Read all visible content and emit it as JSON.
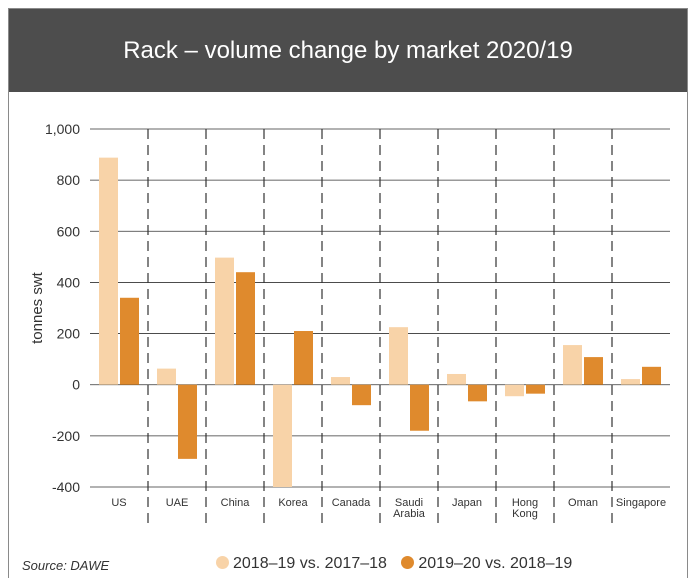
{
  "title": "Rack – volume change by market 2020/19",
  "source": "Source: DAWE",
  "colors": {
    "header_bg": "#4d4d4d",
    "series1": "#f8d3a8",
    "series2": "#df8a2d"
  },
  "chart_data": {
    "type": "bar",
    "title": "Rack – volume change by market 2020/19",
    "ylabel": "tonnes swt",
    "xlabel": "",
    "ylim": [
      -400,
      1000
    ],
    "yticks": [
      -400,
      -200,
      0,
      200,
      400,
      600,
      800,
      1000
    ],
    "ytick_labels": [
      "-400",
      "-200",
      "0",
      "200",
      "400",
      "600",
      "800",
      "1,000"
    ],
    "grid": "horizontal solid, vertical dashed separators",
    "legend_position": "bottom",
    "categories": [
      "US",
      "UAE",
      "China",
      "Korea",
      "Canada",
      "Saudi Arabia",
      "Japan",
      "Hong Kong",
      "Oman",
      "Singapore"
    ],
    "category_label_lines": [
      [
        "US"
      ],
      [
        "UAE"
      ],
      [
        "China"
      ],
      [
        "Korea"
      ],
      [
        "Canada"
      ],
      [
        "Saudi",
        "Arabia"
      ],
      [
        "Japan"
      ],
      [
        "Hong",
        "Kong"
      ],
      [
        "Oman"
      ],
      [
        "Singapore"
      ]
    ],
    "series": [
      {
        "name": "2018–19 vs. 2017–18",
        "color": "#f8d3a8",
        "values": [
          888,
          63,
          497,
          -400,
          30,
          225,
          42,
          -45,
          155,
          22
        ]
      },
      {
        "name": "2019–20 vs. 2018–19",
        "color": "#df8a2d",
        "values": [
          340,
          -290,
          440,
          210,
          -80,
          -180,
          -65,
          -35,
          108,
          70
        ]
      }
    ]
  }
}
